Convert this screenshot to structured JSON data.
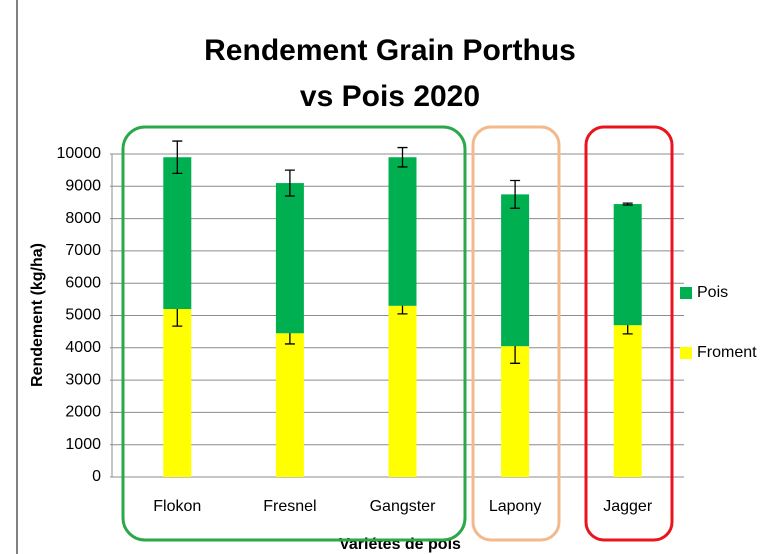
{
  "chart_data": {
    "type": "stacked_bar_errors",
    "title": "Rendement Grain Porthus vs Pois 2020",
    "y_label": "Rendement (kg/ha)",
    "x_label": "Variétes de pois",
    "categories": [
      "Flokon",
      "Fresnel",
      "Gangster",
      "Lapony",
      "Jagger"
    ],
    "series": [
      {
        "name": "Froment",
        "color": "#ffff00",
        "values": [
          5200,
          4450,
          5300,
          4050,
          4700
        ],
        "errors": [
          530,
          330,
          250,
          530,
          270
        ]
      },
      {
        "name": "Pois",
        "color": "#00b050",
        "values": [
          4700,
          4650,
          4600,
          4700,
          3750
        ],
        "errors": [
          500,
          400,
          300,
          430,
          30
        ]
      }
    ],
    "ylim": [
      0,
      10000
    ],
    "yticks": [
      0,
      1000,
      2000,
      3000,
      4000,
      5000,
      6000,
      7000,
      8000,
      9000,
      10000
    ],
    "grid": true,
    "legend": "right"
  }
}
